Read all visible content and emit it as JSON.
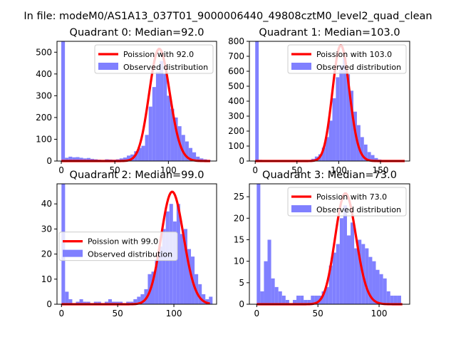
{
  "figure_title": "In file: modeM0/AS1A13_037T01_9000006440_49808cztM0_level2_quad_clean",
  "colors": {
    "poisson_line": "#ff0000",
    "histogram": "#8080ff",
    "axis": "#000000"
  },
  "chart_data": [
    {
      "type": "bar",
      "title": "Quadrant 0: Median=92.0",
      "xlim": [
        -4,
        145
      ],
      "ylim": [
        0,
        550
      ],
      "xticks": [
        0,
        50,
        100
      ],
      "yticks": [
        0,
        100,
        200,
        300,
        400,
        500
      ],
      "legend": {
        "placement": "top-right",
        "line_label": "Poission with 92.0",
        "bar_label": "Observed distribution"
      },
      "poisson_mean": 92.0,
      "bin_width": 3.4,
      "bins": [
        {
          "x": 0,
          "value": 550
        },
        {
          "x": 3.4,
          "value": 15
        },
        {
          "x": 6.8,
          "value": 20
        },
        {
          "x": 10.2,
          "value": 17
        },
        {
          "x": 13.6,
          "value": 18
        },
        {
          "x": 17.0,
          "value": 15
        },
        {
          "x": 20.4,
          "value": 12
        },
        {
          "x": 23.8,
          "value": 14
        },
        {
          "x": 27.2,
          "value": 10
        },
        {
          "x": 30.6,
          "value": 8
        },
        {
          "x": 34.0,
          "value": 6
        },
        {
          "x": 37.4,
          "value": 5
        },
        {
          "x": 40.8,
          "value": 8
        },
        {
          "x": 44.2,
          "value": 7
        },
        {
          "x": 47.6,
          "value": 6
        },
        {
          "x": 51.0,
          "value": 8
        },
        {
          "x": 54.4,
          "value": 12
        },
        {
          "x": 57.8,
          "value": 16
        },
        {
          "x": 61.2,
          "value": 25
        },
        {
          "x": 64.6,
          "value": 30
        },
        {
          "x": 68.0,
          "value": 45
        },
        {
          "x": 71.4,
          "value": 60
        },
        {
          "x": 74.8,
          "value": 70
        },
        {
          "x": 78.2,
          "value": 120
        },
        {
          "x": 81.6,
          "value": 250
        },
        {
          "x": 85.0,
          "value": 340
        },
        {
          "x": 88.4,
          "value": 410
        },
        {
          "x": 91.8,
          "value": 460
        },
        {
          "x": 95.2,
          "value": 400
        },
        {
          "x": 98.6,
          "value": 300
        },
        {
          "x": 102.0,
          "value": 240
        },
        {
          "x": 105.4,
          "value": 200
        },
        {
          "x": 108.8,
          "value": 160
        },
        {
          "x": 112.2,
          "value": 120
        },
        {
          "x": 115.6,
          "value": 90
        },
        {
          "x": 119.0,
          "value": 60
        },
        {
          "x": 122.4,
          "value": 40
        },
        {
          "x": 125.8,
          "value": 20
        },
        {
          "x": 129.2,
          "value": 12
        },
        {
          "x": 132.6,
          "value": 8
        },
        {
          "x": 136.0,
          "value": 5
        }
      ]
    },
    {
      "type": "bar",
      "title": "Quadrant 1: Median=103.0",
      "xlim": [
        -7,
        185
      ],
      "ylim": [
        0,
        800
      ],
      "xticks": [
        0,
        50,
        100,
        150
      ],
      "yticks": [
        0,
        100,
        200,
        300,
        400,
        500,
        600,
        700,
        800
      ],
      "legend": {
        "placement": "top-right",
        "line_label": "Poission with 103.0",
        "bar_label": "Observed distribution"
      },
      "poisson_mean": 103.0,
      "bin_width": 4.2,
      "bins": [
        {
          "x": 0,
          "value": 800
        },
        {
          "x": 4.2,
          "value": 8
        },
        {
          "x": 8.4,
          "value": 6
        },
        {
          "x": 12.6,
          "value": 5
        },
        {
          "x": 16.8,
          "value": 5
        },
        {
          "x": 21.0,
          "value": 4
        },
        {
          "x": 25.2,
          "value": 4
        },
        {
          "x": 29.4,
          "value": 3
        },
        {
          "x": 33.6,
          "value": 3
        },
        {
          "x": 37.8,
          "value": 3
        },
        {
          "x": 42.0,
          "value": 3
        },
        {
          "x": 46.2,
          "value": 2
        },
        {
          "x": 50.4,
          "value": 3
        },
        {
          "x": 54.6,
          "value": 4
        },
        {
          "x": 58.8,
          "value": 5
        },
        {
          "x": 63.0,
          "value": 7
        },
        {
          "x": 67.2,
          "value": 15
        },
        {
          "x": 71.4,
          "value": 30
        },
        {
          "x": 75.6,
          "value": 45
        },
        {
          "x": 79.8,
          "value": 90
        },
        {
          "x": 84.0,
          "value": 160
        },
        {
          "x": 88.2,
          "value": 270
        },
        {
          "x": 92.4,
          "value": 420
        },
        {
          "x": 96.6,
          "value": 560
        },
        {
          "x": 100.8,
          "value": 640
        },
        {
          "x": 105.0,
          "value": 690
        },
        {
          "x": 109.2,
          "value": 580
        },
        {
          "x": 113.4,
          "value": 470
        },
        {
          "x": 117.6,
          "value": 330
        },
        {
          "x": 121.8,
          "value": 240
        },
        {
          "x": 126.0,
          "value": 160
        },
        {
          "x": 130.2,
          "value": 110
        },
        {
          "x": 134.4,
          "value": 60
        },
        {
          "x": 138.6,
          "value": 40
        },
        {
          "x": 142.8,
          "value": 20
        },
        {
          "x": 147.0,
          "value": 10
        },
        {
          "x": 151.2,
          "value": 6
        },
        {
          "x": 155.4,
          "value": 4
        },
        {
          "x": 159.6,
          "value": 3
        },
        {
          "x": 163.8,
          "value": 2
        },
        {
          "x": 168.0,
          "value": 2
        },
        {
          "x": 172.2,
          "value": 1
        }
      ]
    },
    {
      "type": "bar",
      "title": "Quadrant 2: Median=99.0",
      "xlim": [
        -4,
        138
      ],
      "ylim": [
        0,
        48
      ],
      "xticks": [
        0,
        50,
        100
      ],
      "yticks": [
        0,
        10,
        20,
        30,
        40
      ],
      "legend": {
        "placement": "center-left",
        "line_label": "Poission with 99.0",
        "bar_label": "Observed distribution"
      },
      "poisson_mean": 99.0,
      "bin_width": 3.2,
      "bins": [
        {
          "x": 0,
          "value": 48
        },
        {
          "x": 3.2,
          "value": 5
        },
        {
          "x": 6.4,
          "value": 2
        },
        {
          "x": 9.6,
          "value": 0
        },
        {
          "x": 12.8,
          "value": 1
        },
        {
          "x": 16.0,
          "value": 2
        },
        {
          "x": 19.2,
          "value": 1
        },
        {
          "x": 22.4,
          "value": 1
        },
        {
          "x": 25.6,
          "value": 0
        },
        {
          "x": 28.8,
          "value": 1
        },
        {
          "x": 32.0,
          "value": 1
        },
        {
          "x": 35.2,
          "value": 0
        },
        {
          "x": 38.4,
          "value": 1
        },
        {
          "x": 41.6,
          "value": 2
        },
        {
          "x": 44.8,
          "value": 1
        },
        {
          "x": 48.0,
          "value": 1
        },
        {
          "x": 51.2,
          "value": 1
        },
        {
          "x": 54.4,
          "value": 0
        },
        {
          "x": 57.6,
          "value": 1
        },
        {
          "x": 60.8,
          "value": 1
        },
        {
          "x": 64.0,
          "value": 2
        },
        {
          "x": 67.2,
          "value": 3
        },
        {
          "x": 70.4,
          "value": 4
        },
        {
          "x": 73.6,
          "value": 6
        },
        {
          "x": 76.8,
          "value": 12
        },
        {
          "x": 80.0,
          "value": 13
        },
        {
          "x": 83.2,
          "value": 18
        },
        {
          "x": 86.4,
          "value": 23
        },
        {
          "x": 89.6,
          "value": 30
        },
        {
          "x": 92.8,
          "value": 37
        },
        {
          "x": 96.0,
          "value": 40
        },
        {
          "x": 99.2,
          "value": 33
        },
        {
          "x": 102.4,
          "value": 40
        },
        {
          "x": 105.6,
          "value": 28
        },
        {
          "x": 108.8,
          "value": 30
        },
        {
          "x": 112.0,
          "value": 22
        },
        {
          "x": 115.2,
          "value": 19
        },
        {
          "x": 118.4,
          "value": 12
        },
        {
          "x": 121.6,
          "value": 8
        },
        {
          "x": 124.8,
          "value": 4
        },
        {
          "x": 128.0,
          "value": 2
        },
        {
          "x": 131.2,
          "value": 3
        }
      ]
    },
    {
      "type": "bar",
      "title": "Quadrant 3: Median=73.0",
      "xlim": [
        -6,
        125
      ],
      "ylim": [
        0,
        28
      ],
      "xticks": [
        0,
        50,
        100
      ],
      "yticks": [
        0,
        5,
        10,
        15,
        20,
        25
      ],
      "legend": {
        "placement": "top-right",
        "line_label": "Poission with 73.0",
        "bar_label": "Observed distribution"
      },
      "poisson_mean": 73.0,
      "bin_width": 2.95,
      "bins": [
        {
          "x": 0,
          "value": 28
        },
        {
          "x": 2.95,
          "value": 3
        },
        {
          "x": 5.9,
          "value": 10
        },
        {
          "x": 8.85,
          "value": 15
        },
        {
          "x": 11.8,
          "value": 6
        },
        {
          "x": 14.75,
          "value": 4
        },
        {
          "x": 17.7,
          "value": 3
        },
        {
          "x": 20.65,
          "value": 2
        },
        {
          "x": 23.6,
          "value": 1
        },
        {
          "x": 26.55,
          "value": 0
        },
        {
          "x": 29.5,
          "value": 1
        },
        {
          "x": 32.45,
          "value": 2
        },
        {
          "x": 35.4,
          "value": 2
        },
        {
          "x": 38.35,
          "value": 1
        },
        {
          "x": 41.3,
          "value": 1
        },
        {
          "x": 44.25,
          "value": 2
        },
        {
          "x": 47.2,
          "value": 2
        },
        {
          "x": 50.15,
          "value": 2
        },
        {
          "x": 53.1,
          "value": 3
        },
        {
          "x": 56.05,
          "value": 4
        },
        {
          "x": 59.0,
          "value": 9
        },
        {
          "x": 61.95,
          "value": 12
        },
        {
          "x": 64.9,
          "value": 14
        },
        {
          "x": 67.85,
          "value": 20
        },
        {
          "x": 70.8,
          "value": 23
        },
        {
          "x": 73.75,
          "value": 16
        },
        {
          "x": 76.7,
          "value": 19
        },
        {
          "x": 79.65,
          "value": 13
        },
        {
          "x": 82.6,
          "value": 15
        },
        {
          "x": 85.55,
          "value": 14
        },
        {
          "x": 88.5,
          "value": 13
        },
        {
          "x": 91.45,
          "value": 11
        },
        {
          "x": 94.4,
          "value": 10
        },
        {
          "x": 97.35,
          "value": 8
        },
        {
          "x": 100.3,
          "value": 7
        },
        {
          "x": 103.25,
          "value": 6
        },
        {
          "x": 106.2,
          "value": 3
        },
        {
          "x": 109.15,
          "value": 2
        },
        {
          "x": 112.1,
          "value": 2
        },
        {
          "x": 115.05,
          "value": 2
        }
      ]
    }
  ]
}
